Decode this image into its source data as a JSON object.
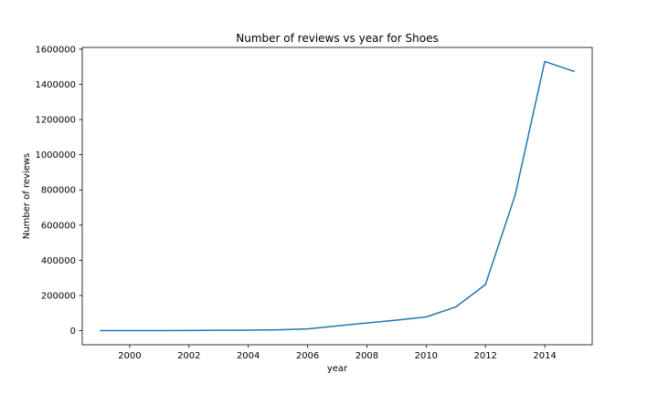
{
  "chart_data": {
    "type": "line",
    "title": "Number of reviews vs year for Shoes",
    "xlabel": "year",
    "ylabel": "Number of reviews",
    "xlim": [
      1998.4,
      2015.6
    ],
    "ylim": [
      -80000,
      1610000
    ],
    "x_ticks": [
      2000,
      2002,
      2004,
      2006,
      2008,
      2010,
      2012,
      2014
    ],
    "y_ticks": [
      0,
      200000,
      400000,
      600000,
      800000,
      1000000,
      1200000,
      1400000,
      1600000
    ],
    "grid": false,
    "series": [
      {
        "color": "#1f77b4",
        "x": [
          1999,
          2000,
          2001,
          2002,
          2003,
          2004,
          2005,
          2006,
          2007,
          2008,
          2009,
          2010,
          2011,
          2012,
          2013,
          2014,
          2015
        ],
        "y": [
          200,
          300,
          500,
          1000,
          2000,
          3000,
          5000,
          10000,
          27000,
          44000,
          60000,
          78000,
          135000,
          262000,
          770000,
          1530000,
          1473000
        ]
      }
    ]
  }
}
